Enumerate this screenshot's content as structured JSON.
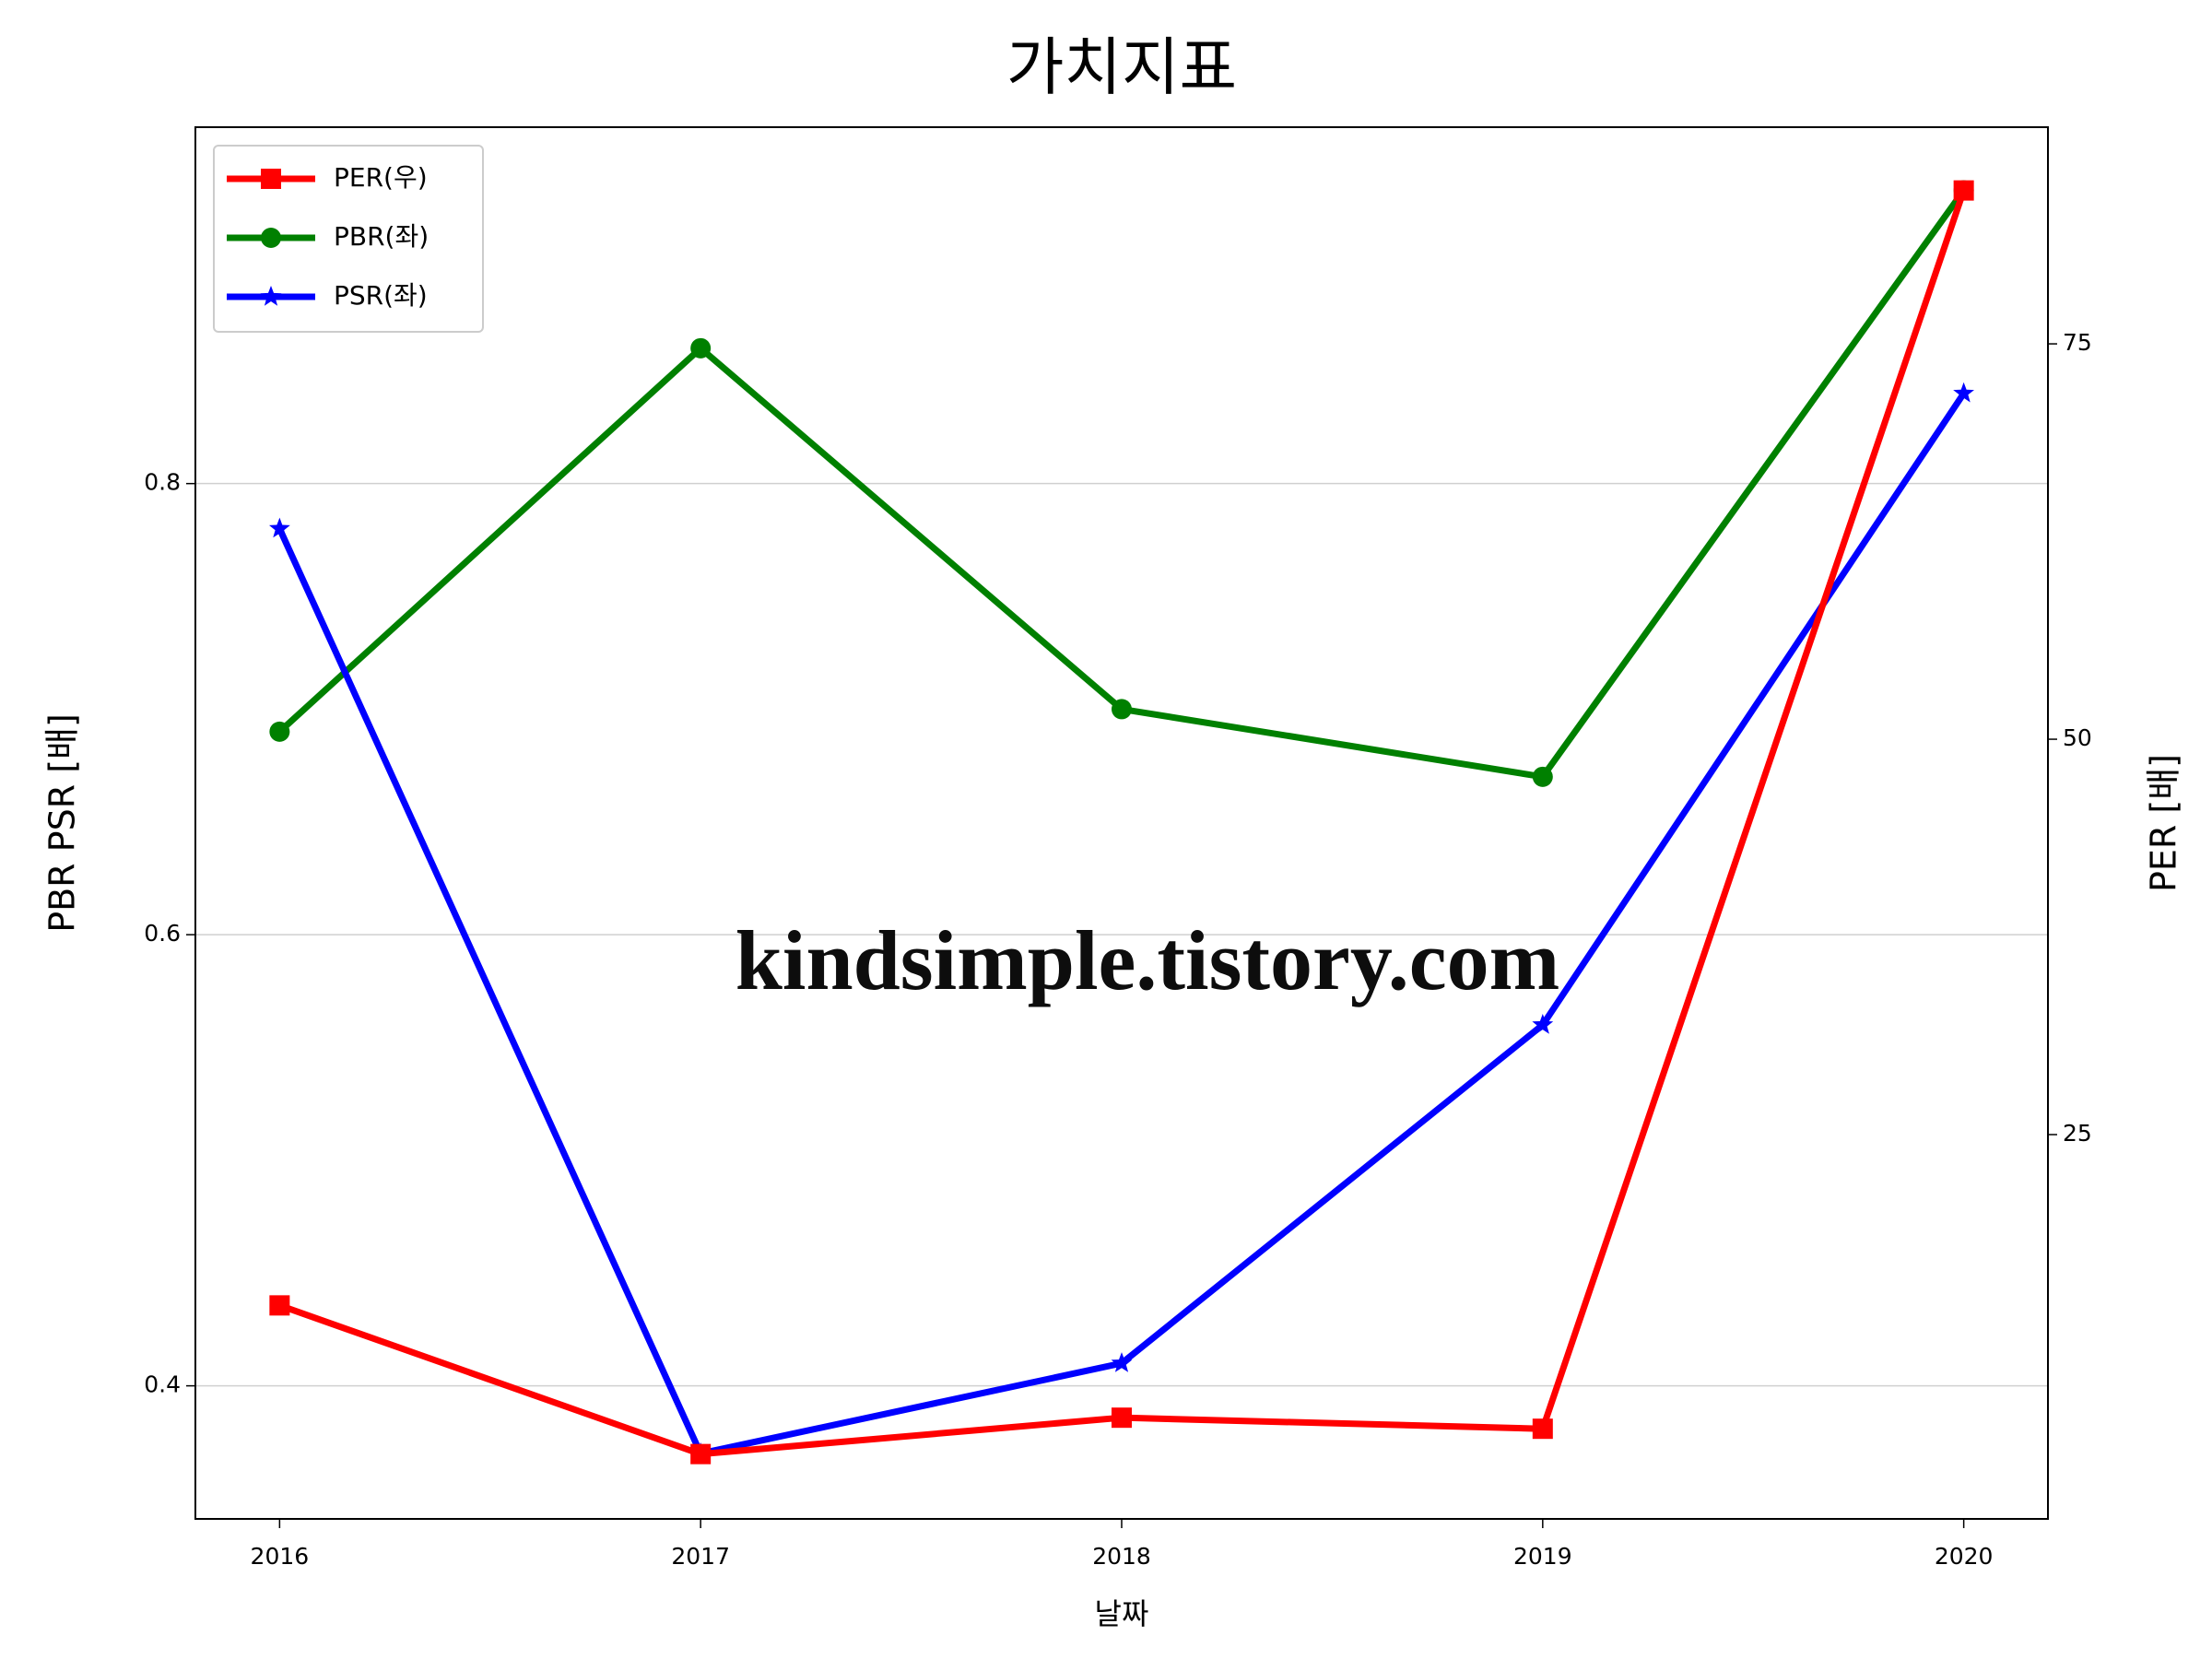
{
  "chart_data": {
    "type": "line",
    "title": "가치지표",
    "xlabel": "날짜",
    "ylabel": "PBR PSR [배]",
    "y2label": "PER [배]",
    "ylabel_color": "#008000",
    "y2label_color": "#ff0000",
    "x": [
      2016,
      2017,
      2018,
      2019,
      2020
    ],
    "xlim": [
      2015.8,
      2020.2
    ],
    "xticks": [
      2016,
      2017,
      2018,
      2019,
      2020
    ],
    "ylim": [
      0.341,
      0.958
    ],
    "yticks": [
      0.4,
      0.6,
      0.8
    ],
    "y2lim": [
      0.7,
      88.7
    ],
    "y2ticks": [
      25,
      50,
      75
    ],
    "grid": true,
    "legend": "upper left",
    "series": [
      {
        "name": "PER(우)",
        "color": "#ff0000",
        "marker": "square",
        "axis": "y2",
        "values": [
          14.2,
          4.8,
          7.1,
          6.4,
          84.7
        ]
      },
      {
        "name": "PBR(좌)",
        "color": "#008000",
        "marker": "circle",
        "values": [
          0.69,
          0.86,
          0.7,
          0.67,
          0.93
        ]
      },
      {
        "name": "PSR(좌)",
        "color": "#0000ff",
        "marker": "star",
        "values": [
          0.78,
          0.37,
          0.41,
          0.56,
          0.84
        ]
      }
    ],
    "watermark": "kindsimple.tistory.com"
  }
}
